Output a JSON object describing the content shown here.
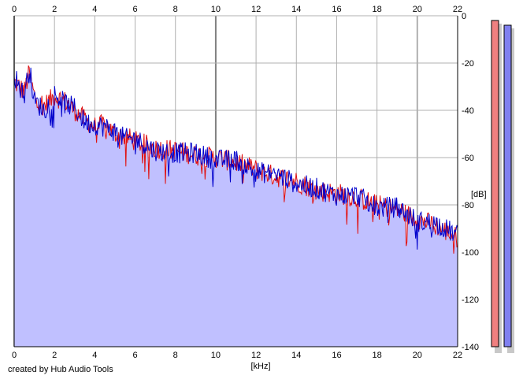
{
  "chart_data": {
    "type": "line",
    "title": "",
    "xlabel": "[kHz]",
    "ylabel": "[dB]",
    "xlim": [
      0,
      22
    ],
    "ylim": [
      -140,
      0
    ],
    "x_ticks": [
      0,
      2,
      4,
      6,
      8,
      10,
      12,
      14,
      16,
      18,
      20,
      22
    ],
    "y_ticks": [
      0,
      -20,
      -40,
      -60,
      -80,
      -100,
      -120,
      -140
    ],
    "x_tick_labels": [
      "0",
      "2",
      "4",
      "6",
      "8",
      "10",
      "12",
      "14",
      "16",
      "18",
      "20",
      "22"
    ],
    "y_tick_labels": [
      "0",
      "-20",
      "-40",
      "-60",
      "-80",
      "-100",
      "-120",
      "-140"
    ],
    "grid": true,
    "fill_color": "#c0c0ff",
    "series": [
      {
        "color": "#e01010",
        "x": [
          0,
          0.5,
          0.75,
          1,
          1.5,
          2,
          2.5,
          3,
          3.5,
          4,
          4.5,
          5,
          5.5,
          6,
          7,
          8,
          9,
          10,
          11,
          12,
          13,
          14,
          15,
          16,
          17,
          18,
          19,
          20,
          21,
          22
        ],
        "y": [
          -28,
          -32,
          -24,
          -34,
          -38,
          -34,
          -36,
          -40,
          -44,
          -47,
          -46,
          -50,
          -51,
          -53,
          -56,
          -57,
          -59,
          -60,
          -62,
          -65,
          -68,
          -70,
          -74,
          -75,
          -77,
          -80,
          -82,
          -86,
          -89,
          -94
        ]
      },
      {
        "color": "#0000cc",
        "x": [
          0,
          0.5,
          0.75,
          1,
          1.5,
          2,
          2.5,
          3,
          3.5,
          4,
          4.5,
          5,
          5.5,
          6,
          7,
          8,
          9,
          10,
          11,
          12,
          13,
          14,
          15,
          16,
          17,
          18,
          19,
          20,
          21,
          22
        ],
        "y": [
          -25,
          -34,
          -22,
          -36,
          -40,
          -33,
          -37,
          -39,
          -45,
          -46,
          -47,
          -49,
          -52,
          -52,
          -57,
          -58,
          -58,
          -61,
          -61,
          -66,
          -67,
          -71,
          -73,
          -76,
          -76,
          -81,
          -81,
          -87,
          -88,
          -93
        ]
      }
    ]
  },
  "meters": [
    {
      "color": "#f08080",
      "level": -2
    },
    {
      "color": "#8080f0",
      "level": -4
    }
  ],
  "credit": "created by Hub Audio Tools"
}
